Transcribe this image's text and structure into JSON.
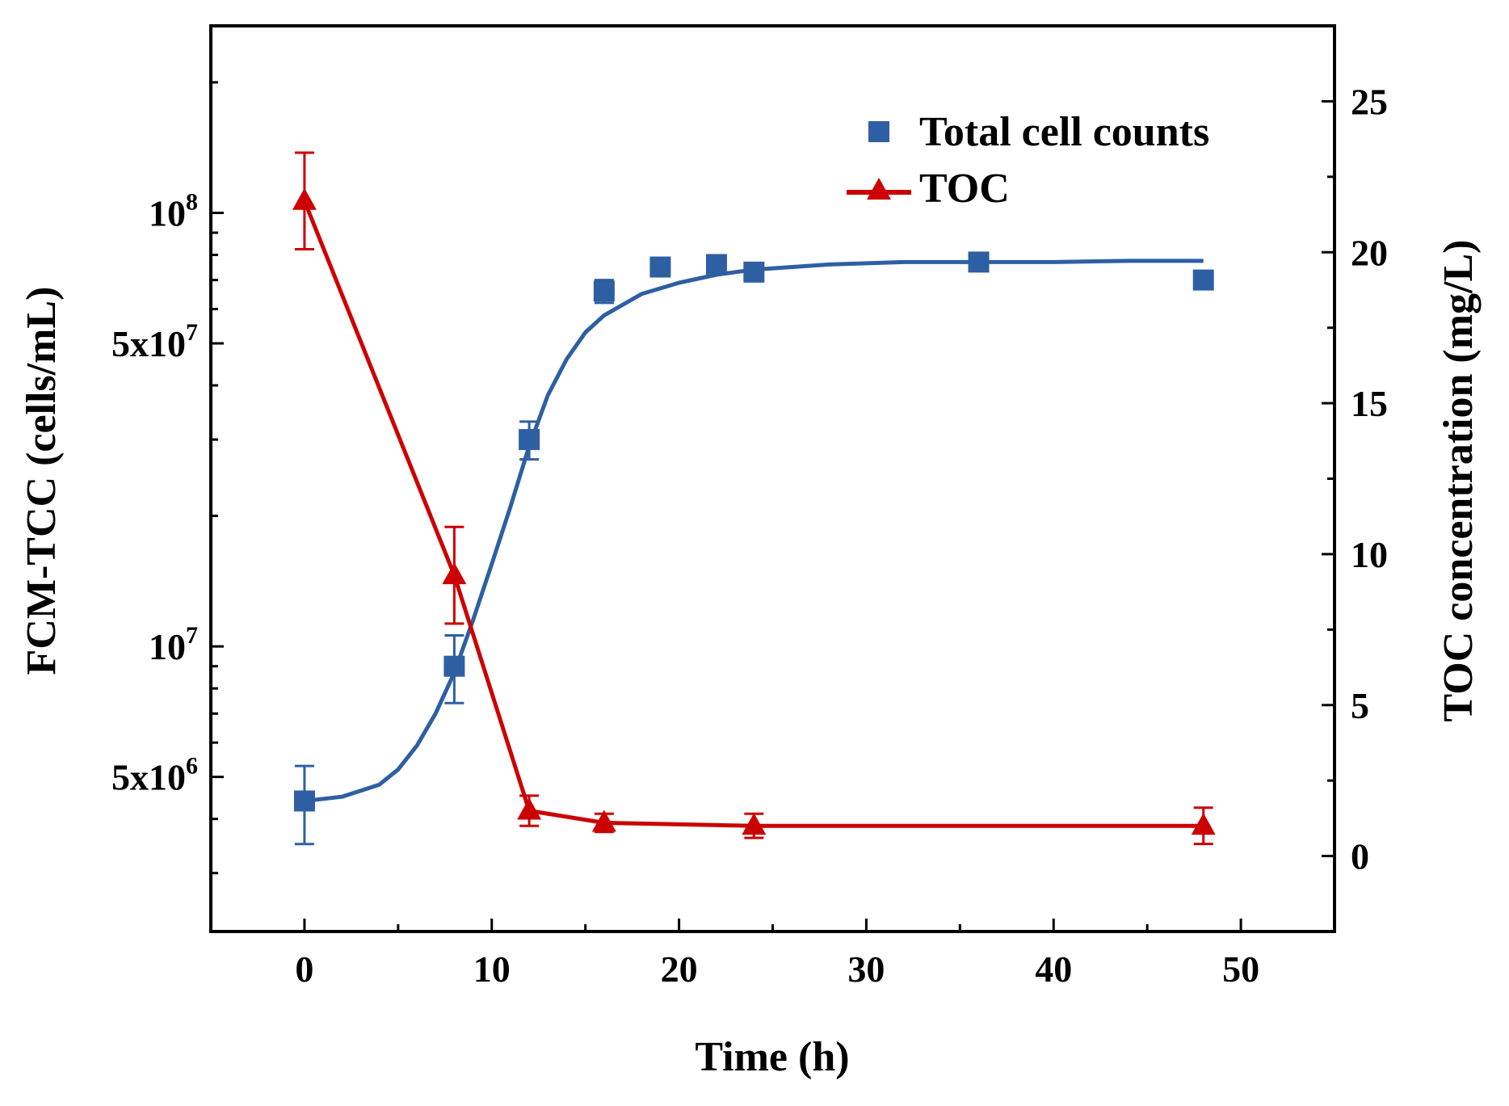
{
  "chart_data": {
    "type": "line",
    "xlabel": "Time (h)",
    "ylabel_left": "FCM-TCC (cells/mL)",
    "ylabel_right": "TOC concentration (mg/L)",
    "xlim": [
      -5,
      55
    ],
    "xticks": [
      0,
      10,
      20,
      30,
      40,
      50
    ],
    "xtick_labels": [
      "0",
      "10",
      "20",
      "30",
      "40",
      "50"
    ],
    "y_left_scale": "log",
    "y_left_lim": [
      2200000,
      270000000
    ],
    "y_left_ticks": [
      {
        "value": 100000000,
        "base": "10",
        "exp": "8"
      },
      {
        "value": 50000000,
        "base": "5x10",
        "exp": "7"
      },
      {
        "value": 10000000,
        "base": "10",
        "exp": "7"
      },
      {
        "value": 5000000,
        "base": "5x10",
        "exp": "6"
      }
    ],
    "y_left_minor_ticks": [
      3000000,
      4000000,
      6000000,
      7000000,
      8000000,
      9000000,
      20000000,
      30000000,
      40000000,
      60000000,
      70000000,
      80000000,
      90000000,
      200000000
    ],
    "y_right_lim": [
      -2.5,
      27.5
    ],
    "y_right_ticks": [
      0,
      5,
      10,
      15,
      20,
      25
    ],
    "y_right_tick_labels": [
      "0",
      "5",
      "10",
      "15",
      "20",
      "25"
    ],
    "series": [
      {
        "name": "Total cell counts",
        "axis": "left",
        "color": "#2e5fa3",
        "marker": "square",
        "x": [
          0,
          8,
          12,
          16,
          19,
          22,
          24,
          36,
          48
        ],
        "y": [
          4400000,
          9000000,
          30000000,
          66000000,
          75000000,
          76000000,
          73000000,
          77000000,
          70000000
        ],
        "err": [
          900000,
          1600000,
          3000000,
          4000000,
          3000000,
          2500000,
          2500000,
          2500000,
          2500000
        ],
        "fit_curve": {
          "x": [
            0,
            2,
            4,
            5,
            6,
            7,
            8,
            9,
            10,
            11,
            12,
            13,
            14,
            15,
            16,
            18,
            20,
            22,
            24,
            28,
            32,
            36,
            40,
            44,
            48
          ],
          "y": [
            4400000,
            4500000,
            4800000,
            5200000,
            5900000,
            7000000,
            8700000,
            11500000,
            15500000,
            21000000,
            29000000,
            38000000,
            46000000,
            53000000,
            58000000,
            65000000,
            69000000,
            72000000,
            74000000,
            76000000,
            77000000,
            77000000,
            77000000,
            77500000,
            77500000
          ]
        }
      },
      {
        "name": "TOC",
        "axis": "right",
        "color": "#cc0000",
        "marker": "triangle",
        "x": [
          0,
          8,
          12,
          16,
          24,
          48
        ],
        "y": [
          21.7,
          9.3,
          1.5,
          1.1,
          1.0,
          1.0
        ],
        "err": [
          1.6,
          1.6,
          0.5,
          0.3,
          0.4,
          0.6
        ]
      }
    ],
    "legend": {
      "position": "top-right",
      "entries": [
        "Total cell counts",
        "TOC"
      ]
    }
  }
}
